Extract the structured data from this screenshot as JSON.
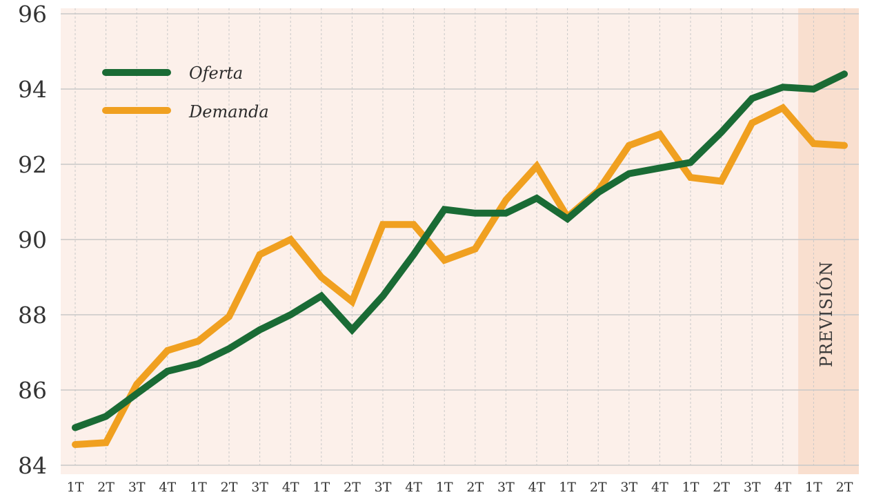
{
  "chart_data": {
    "type": "line",
    "title": "",
    "xlabel": "",
    "ylabel": "",
    "categories": [
      "1T",
      "2T",
      "3T",
      "4T",
      "1T",
      "2T",
      "3T",
      "4T",
      "1T",
      "2T",
      "3T",
      "4T",
      "1T",
      "2T",
      "3T",
      "4T",
      "1T",
      "2T",
      "3T",
      "4T",
      "1T",
      "2T",
      "3T",
      "4T",
      "1T",
      "2T"
    ],
    "yticks": [
      84,
      86,
      88,
      90,
      92,
      94,
      96
    ],
    "ylim": [
      84,
      96
    ],
    "grid": true,
    "legend_position": "top-left",
    "forecast_label": "PREVISIÓN",
    "forecast_start_index": 24,
    "series": [
      {
        "name": "Oferta",
        "color": "#1a6b35",
        "values": [
          85.0,
          85.3,
          85.9,
          86.5,
          86.7,
          87.1,
          87.6,
          88.0,
          88.5,
          87.6,
          88.5,
          89.6,
          90.8,
          90.7,
          90.7,
          91.1,
          90.55,
          91.25,
          91.75,
          91.9,
          92.05,
          92.85,
          93.75,
          94.05,
          94.0,
          94.4
        ]
      },
      {
        "name": "Demanda",
        "color": "#f0a020",
        "values": [
          84.55,
          84.6,
          86.15,
          87.05,
          87.3,
          87.95,
          89.6,
          90.0,
          89.0,
          88.35,
          90.4,
          90.4,
          89.45,
          89.75,
          91.05,
          91.95,
          90.6,
          91.3,
          92.5,
          92.8,
          91.65,
          91.55,
          93.1,
          93.5,
          92.55,
          92.5
        ]
      }
    ]
  },
  "colors": {
    "plot_background": "#fcf0ea",
    "forecast_band": "#f9dfcf",
    "grid_horizontal": "#c8c8c8",
    "grid_vertical": "#c8c8c8"
  }
}
